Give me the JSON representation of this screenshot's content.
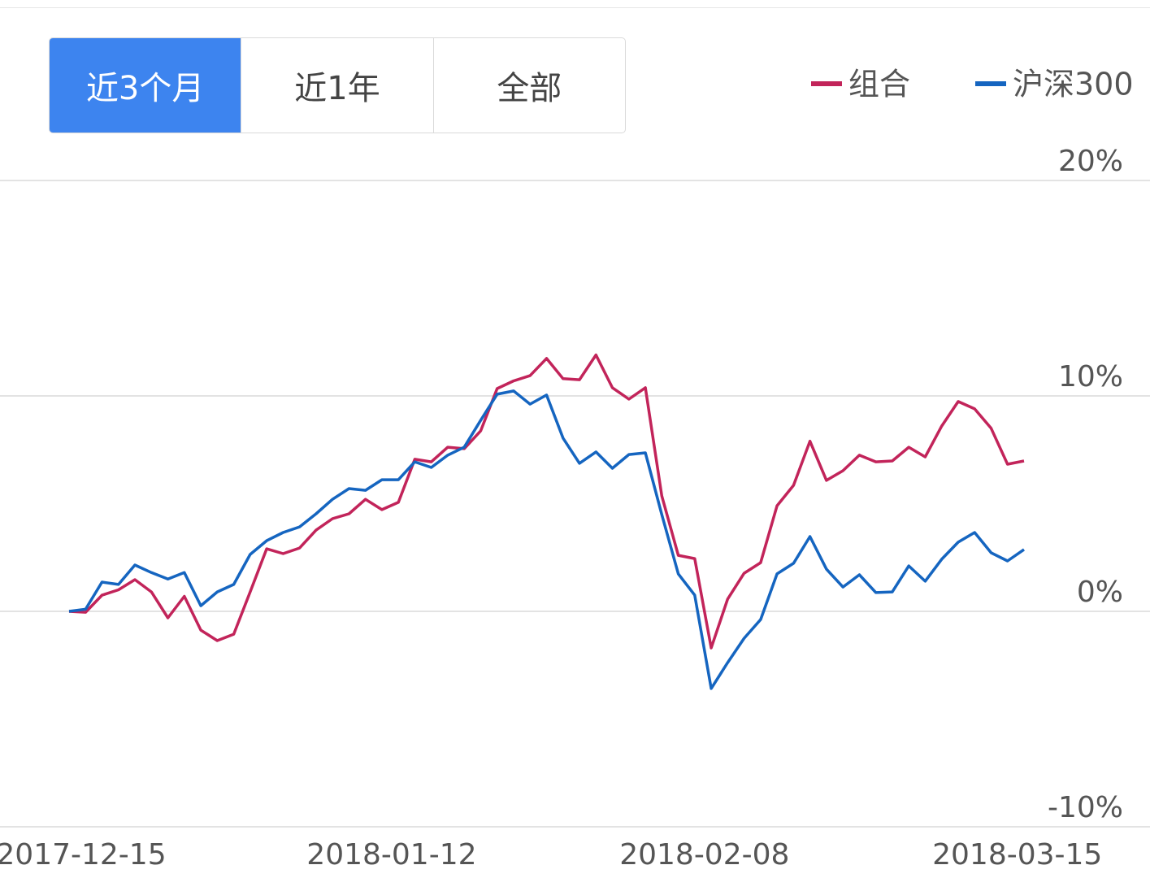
{
  "tabs": [
    "近3个月",
    "近1年",
    "全部"
  ],
  "chart_data": {
    "type": "line",
    "categories": [
      "2017-12-15",
      null,
      null,
      null,
      null,
      null,
      null,
      null,
      null,
      null,
      null,
      null,
      null,
      null,
      null,
      null,
      null,
      null,
      null,
      "2018-01-12",
      null,
      null,
      null,
      null,
      null,
      null,
      null,
      null,
      null,
      null,
      null,
      null,
      null,
      null,
      null,
      null,
      null,
      null,
      "2018-02-08",
      null,
      null,
      null,
      null,
      null,
      null,
      null,
      null,
      null,
      null,
      null,
      null,
      null,
      null,
      null,
      null,
      null,
      null,
      "2018-03-15",
      null
    ],
    "series": [
      {
        "name": "组合",
        "color": "#c2245a",
        "values": [
          0,
          -0.04,
          0.75,
          1.0,
          1.47,
          0.9,
          -0.3,
          0.7,
          -0.87,
          -1.36,
          -1.06,
          0.9,
          2.9,
          2.68,
          2.94,
          3.77,
          4.3,
          4.53,
          5.2,
          4.72,
          5.06,
          7.06,
          6.94,
          7.62,
          7.55,
          8.38,
          10.34,
          10.7,
          10.94,
          11.74,
          10.8,
          10.75,
          11.9,
          10.38,
          9.85,
          10.38,
          5.36,
          2.6,
          2.45,
          -1.7,
          0.57,
          1.77,
          2.26,
          4.9,
          5.85,
          7.9,
          6.08,
          6.53,
          7.25,
          6.94,
          6.98,
          7.62,
          7.17,
          8.6,
          9.74,
          9.4,
          8.5,
          6.83,
          6.98
        ]
      },
      {
        "name": "沪深300",
        "color": "#1565c0",
        "values": [
          0,
          0.1,
          1.36,
          1.25,
          2.15,
          1.8,
          1.5,
          1.8,
          0.26,
          0.9,
          1.25,
          2.64,
          3.28,
          3.66,
          3.92,
          4.53,
          5.2,
          5.7,
          5.62,
          6.11,
          6.11,
          6.94,
          6.68,
          7.25,
          7.62,
          8.87,
          10.08,
          10.23,
          9.62,
          10.04,
          8.04,
          6.87,
          7.4,
          6.64,
          7.28,
          7.36,
          4.49,
          1.74,
          0.75,
          -3.58,
          -2.38,
          -1.25,
          -0.38,
          1.74,
          2.23,
          3.47,
          1.96,
          1.13,
          1.7,
          0.87,
          0.9,
          2.11,
          1.4,
          2.42,
          3.21,
          3.66,
          2.72,
          2.34,
          2.87
        ]
      }
    ],
    "ylim": [
      -10,
      20
    ],
    "yticks": [
      {
        "value": -10,
        "label": "-10%"
      },
      {
        "value": 0,
        "label": "0%"
      },
      {
        "value": 10,
        "label": "10%"
      },
      {
        "value": 20,
        "label": "20%"
      }
    ],
    "grid": true
  }
}
